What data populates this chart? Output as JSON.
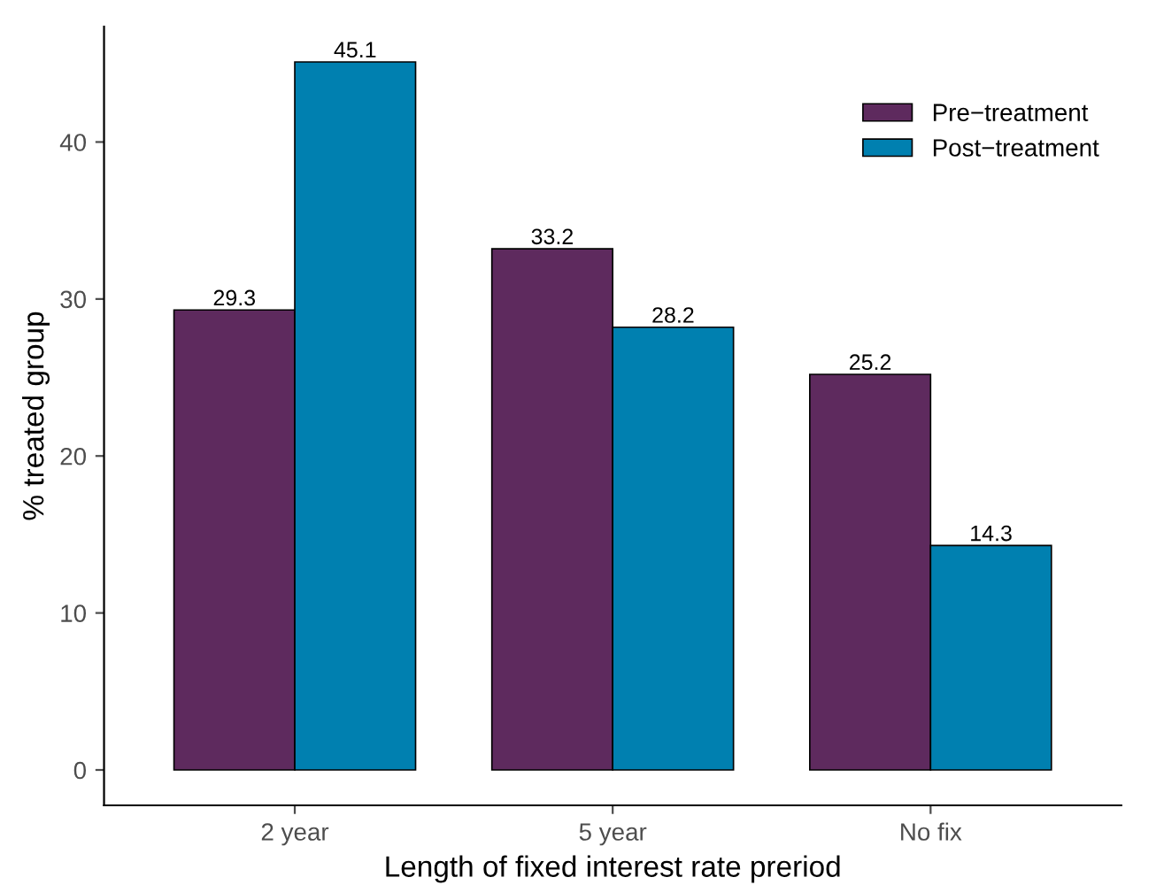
{
  "chart_data": {
    "type": "bar",
    "xlabel": "Length of fixed interest rate preriod",
    "ylabel": "% treated group",
    "categories": [
      "2 year",
      "5 year",
      "No fix"
    ],
    "series": [
      {
        "name": "Pre−treatment",
        "color": "#5e2a5e",
        "values": [
          29.3,
          33.2,
          25.2
        ]
      },
      {
        "name": "Post−treatment",
        "color": "#0080b0",
        "values": [
          45.1,
          28.2,
          14.3
        ]
      }
    ],
    "ylim": [
      -2.255,
      47.355
    ],
    "yticks": [
      0,
      10,
      20,
      30,
      40
    ],
    "data_labels": true,
    "grid": false,
    "legend": "top right"
  }
}
